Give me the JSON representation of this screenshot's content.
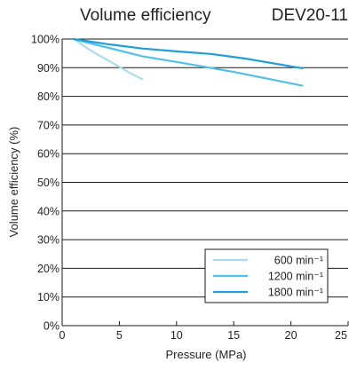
{
  "chart_data": {
    "type": "line",
    "title": "Volume efficiency",
    "subtitle": "DEV20-11",
    "xlabel": "Pressure (MPa)",
    "ylabel": "Volume efficiency (%)",
    "xlim": [
      0,
      25
    ],
    "ylim": [
      0,
      100
    ],
    "xticks": [
      "0",
      "5",
      "10",
      "15",
      "20",
      "25"
    ],
    "yticks": [
      "0%",
      "10%",
      "20%",
      "30%",
      "40%",
      "50%",
      "60%",
      "70%",
      "80%",
      "90%",
      "100%"
    ],
    "grid": "horizontal",
    "legend_position": "bottom-right",
    "series": [
      {
        "name": "600 min⁻¹",
        "color": "#a9dcf0",
        "x": [
          1,
          2,
          3,
          4,
          5,
          6,
          7
        ],
        "y": [
          100,
          97.3,
          94.8,
          92.6,
          90.3,
          88.0,
          86.0
        ]
      },
      {
        "name": "1200 min⁻¹",
        "color": "#4fc1e9",
        "x": [
          1,
          3,
          5,
          7,
          10,
          15,
          21
        ],
        "y": [
          100,
          98.0,
          96.0,
          94.0,
          92.0,
          88.5,
          83.7
        ]
      },
      {
        "name": "1800 min⁻¹",
        "color": "#1e9fd6",
        "x": [
          1,
          4,
          7,
          10,
          13,
          16,
          21
        ],
        "y": [
          100,
          98.2,
          96.7,
          95.7,
          94.8,
          93.2,
          89.8
        ]
      }
    ]
  }
}
